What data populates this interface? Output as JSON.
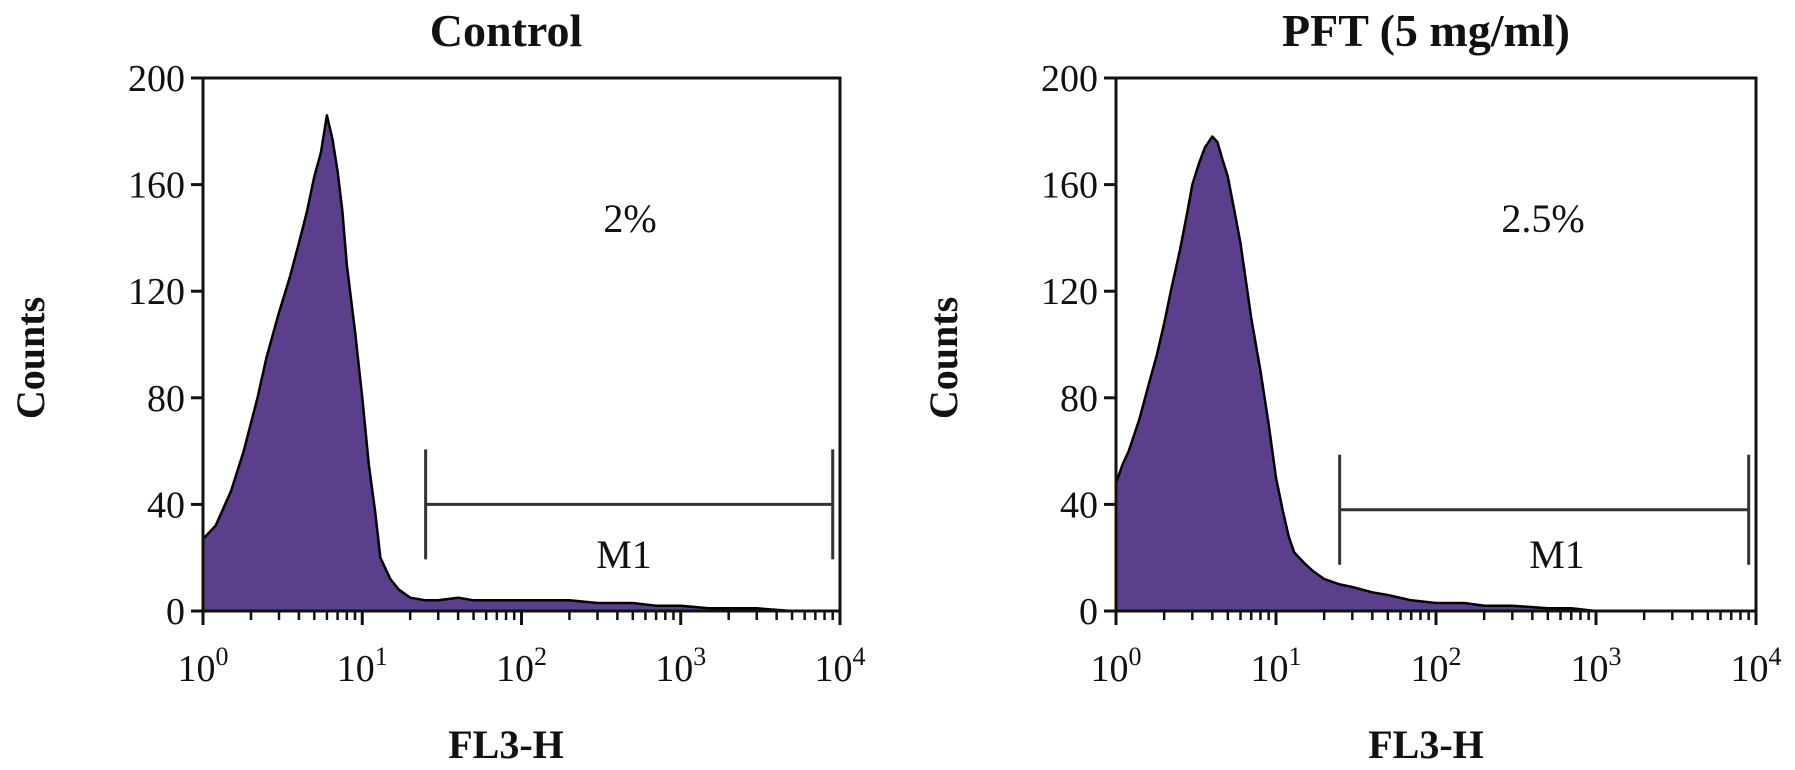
{
  "chart_data": [
    {
      "type": "area",
      "title": "Control",
      "xlabel": "FL3-H",
      "ylabel": "Counts",
      "x_scale": "log",
      "xlim": [
        1,
        10000
      ],
      "ylim": [
        0,
        200
      ],
      "x_ticks": [
        {
          "base": "10",
          "exp": "0",
          "value": 1
        },
        {
          "base": "10",
          "exp": "1",
          "value": 10
        },
        {
          "base": "10",
          "exp": "2",
          "value": 100
        },
        {
          "base": "10",
          "exp": "3",
          "value": 1000
        },
        {
          "base": "10",
          "exp": "4",
          "value": 10000
        }
      ],
      "y_ticks": [
        "0",
        "40",
        "80",
        "120",
        "160",
        "200"
      ],
      "fill_color": "#5b3f8c",
      "series": [
        {
          "x": [
            1,
            1.2,
            1.5,
            1.8,
            2.2,
            2.5,
            3,
            3.5,
            4,
            4.5,
            5,
            5.5,
            6,
            6.5,
            7,
            7.5,
            8,
            9,
            10,
            11,
            12,
            13,
            15,
            17,
            20,
            25,
            30,
            40,
            50,
            70,
            100,
            150,
            200,
            300,
            500,
            700,
            1000,
            1500,
            2000,
            3000,
            5000,
            7000,
            10000
          ],
          "y": [
            27,
            32,
            45,
            60,
            80,
            95,
            112,
            125,
            138,
            150,
            163,
            172,
            186,
            177,
            165,
            150,
            130,
            105,
            80,
            55,
            38,
            20,
            12,
            8,
            5,
            4,
            4,
            5,
            4,
            4,
            4,
            4,
            4,
            3,
            3,
            2,
            2,
            1,
            1,
            1,
            0,
            0,
            0
          ]
        }
      ],
      "annotations": {
        "percent": "2%",
        "marker_label": "M1",
        "marker_range": [
          25,
          9000
        ],
        "marker_level": 40
      }
    },
    {
      "type": "area",
      "title": "PFT (5 mg/ml)",
      "xlabel": "FL3-H",
      "ylabel": "Counts",
      "x_scale": "log",
      "xlim": [
        1,
        10000
      ],
      "ylim": [
        0,
        200
      ],
      "x_ticks": [
        {
          "base": "10",
          "exp": "0",
          "value": 1
        },
        {
          "base": "10",
          "exp": "1",
          "value": 10
        },
        {
          "base": "10",
          "exp": "2",
          "value": 100
        },
        {
          "base": "10",
          "exp": "3",
          "value": 1000
        },
        {
          "base": "10",
          "exp": "4",
          "value": 10000
        }
      ],
      "y_ticks": [
        "0",
        "40",
        "80",
        "120",
        "160",
        "200"
      ],
      "fill_color": "#5b3f8c",
      "series": [
        {
          "x": [
            1,
            1.1,
            1.2,
            1.4,
            1.6,
            1.8,
            2,
            2.2,
            2.5,
            2.8,
            3,
            3.3,
            3.6,
            4,
            4.3,
            4.6,
            5,
            5.5,
            6,
            7,
            8,
            9,
            10,
            11,
            12,
            13,
            15,
            17,
            20,
            25,
            30,
            40,
            50,
            70,
            100,
            150,
            200,
            300,
            500,
            700,
            1000,
            2000,
            5000,
            10000
          ],
          "y": [
            48,
            55,
            60,
            72,
            85,
            96,
            108,
            120,
            135,
            150,
            160,
            168,
            174,
            178,
            176,
            170,
            163,
            150,
            138,
            110,
            90,
            70,
            50,
            38,
            28,
            22,
            18,
            15,
            12,
            10,
            9,
            7,
            6,
            4,
            3,
            3,
            2,
            2,
            1,
            1,
            0,
            0,
            0,
            0
          ]
        }
      ],
      "annotations": {
        "percent": "2.5%",
        "marker_label": "M1",
        "marker_range": [
          25,
          9000
        ],
        "marker_level": 38
      }
    }
  ]
}
